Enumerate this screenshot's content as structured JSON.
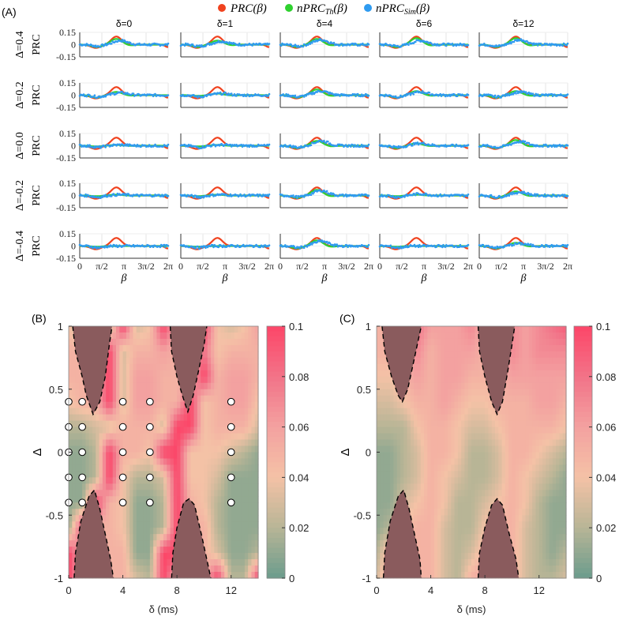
{
  "chart_data": [
    {
      "type": "line",
      "panel_label": "(A)",
      "legend": [
        {
          "label": "PRC(β)",
          "color": "#f0421e"
        },
        {
          "label": "nPRC_Th(β)",
          "color": "#2fd12f",
          "base": "nPRC",
          "sub": "Th",
          "tail": "(β)"
        },
        {
          "label": "nPRC_Sim(β)",
          "color": "#2f9bf0",
          "base": "nPRC",
          "sub": "Sim",
          "tail": "(β)"
        }
      ],
      "legend_placement": "top-center",
      "column_titles": [
        "δ=0",
        "δ=1",
        "δ=4",
        "δ=6",
        "δ=12"
      ],
      "row_titles": [
        "Δ=0.4",
        "Δ=0.2",
        "Δ=0.0",
        "Δ=-0.2",
        "Δ=-0.4"
      ],
      "ylabel": "PRC",
      "xlabel": "β",
      "xlim": [
        0,
        6.2832
      ],
      "ylim": [
        -0.15,
        0.15
      ],
      "xticks": [
        "0",
        "π/2",
        "π",
        "3π/2",
        "2π"
      ],
      "yticks": [
        "0.15",
        "0",
        "-0.15"
      ],
      "prc_peak": 0.1,
      "nprc_th_peak": [
        [
          0.07,
          0.05,
          0.07,
          0.08,
          0.08
        ],
        [
          0.04,
          0.02,
          0.07,
          0.05,
          0.05
        ],
        [
          0.01,
          0.01,
          0.06,
          0.03,
          0.07
        ],
        [
          0.01,
          0.01,
          0.07,
          0.01,
          0.05
        ],
        [
          0.0,
          0.0,
          0.07,
          0.0,
          0.04
        ]
      ],
      "nprc_sim_peak": [
        [
          0.05,
          0.04,
          0.06,
          0.05,
          0.06
        ],
        [
          0.03,
          0.02,
          0.05,
          0.04,
          0.04
        ],
        [
          0.01,
          0.01,
          0.06,
          0.03,
          0.05
        ],
        [
          0.01,
          0.01,
          0.06,
          0.02,
          0.04
        ],
        [
          0.0,
          0.0,
          0.06,
          0.0,
          0.03
        ]
      ]
    },
    {
      "type": "heatmap",
      "panel_label": "(B)",
      "xlabel": "δ (ms)",
      "ylabel": "Δ",
      "xlim": [
        0,
        14
      ],
      "ylim": [
        -1,
        1
      ],
      "xticks": [
        "0",
        "4",
        "8",
        "12"
      ],
      "xtick_values": [
        0,
        4,
        8,
        12
      ],
      "yticks": [
        "1",
        "0.5",
        "0",
        "-0.5",
        "-1"
      ],
      "ytick_values": [
        1,
        0.5,
        0,
        -0.5,
        -1
      ],
      "colorbar": {
        "ticks": [
          "0.1",
          "0.08",
          "0.06",
          "0.04",
          "0.02",
          "0"
        ],
        "tick_values": [
          0.1,
          0.08,
          0.06,
          0.04,
          0.02,
          0
        ],
        "range": [
          0,
          0.1
        ]
      },
      "grid_x": [
        0,
        1,
        2,
        3,
        4,
        5,
        6,
        7,
        8,
        9,
        10,
        11,
        12,
        13,
        14
      ],
      "grid_y": [
        1,
        0.8,
        0.6,
        0.4,
        0.2,
        0,
        -0.2,
        -0.4,
        -0.6,
        -0.8,
        -1
      ],
      "values": [
        [
          0.04,
          0.02,
          0.02,
          0.02,
          0.1,
          0.03,
          0.04,
          0.1,
          0.05,
          0.05,
          0.1,
          0.04,
          0.03,
          0.04,
          0.06
        ],
        [
          0.05,
          0.05,
          0.05,
          0.1,
          0.03,
          0.05,
          0.05,
          0.06,
          0.05,
          0.05,
          0.08,
          0.04,
          0.05,
          0.05,
          0.05
        ],
        [
          0.05,
          0.05,
          0.05,
          0.1,
          0.03,
          0.06,
          0.06,
          0.05,
          0.05,
          0.05,
          0.1,
          0.05,
          0.06,
          0.06,
          0.05
        ],
        [
          0.04,
          0.05,
          0.05,
          0.1,
          0.03,
          0.06,
          0.06,
          0.05,
          0.05,
          0.1,
          0.04,
          0.05,
          0.06,
          0.06,
          0.04
        ],
        [
          0.02,
          0.02,
          0.03,
          0.03,
          0.05,
          0.05,
          0.05,
          0.03,
          0.1,
          0.1,
          0.04,
          0.05,
          0.05,
          0.05,
          0.03
        ],
        [
          0.01,
          0.01,
          0.02,
          0.1,
          0.05,
          0.05,
          0.04,
          0.1,
          0.1,
          0.04,
          0.04,
          0.04,
          0.03,
          0.02,
          0.01
        ],
        [
          0.01,
          0.01,
          0.02,
          0.1,
          0.04,
          0.02,
          0.02,
          0.03,
          0.1,
          0.04,
          0.04,
          0.03,
          0.01,
          0.01,
          0.01
        ],
        [
          0.01,
          0.01,
          0.1,
          0.05,
          0.04,
          0.01,
          0.01,
          0.02,
          0.1,
          0.05,
          0.04,
          0.02,
          0.01,
          0.01,
          0.01
        ],
        [
          0.01,
          0.1,
          0.05,
          0.05,
          0.04,
          0.01,
          0.01,
          0.02,
          0.1,
          0.05,
          0.05,
          0.02,
          0.01,
          0.01,
          0.01
        ],
        [
          0.1,
          0.05,
          0.05,
          0.05,
          0.05,
          0.01,
          0.01,
          0.1,
          0.1,
          0.05,
          0.05,
          0.03,
          0.01,
          0.01,
          0.02
        ],
        [
          0.1,
          0.05,
          0.05,
          0.05,
          0.05,
          0.03,
          0.02,
          0.1,
          0.05,
          0.05,
          0.05,
          0.1,
          0.02,
          0.02,
          0.1
        ]
      ],
      "unstable_regions": [
        [
          [
            0.3,
            1
          ],
          [
            0.5,
            0.8
          ],
          [
            1.0,
            0.6
          ],
          [
            1.3,
            0.45
          ],
          [
            1.8,
            0.3
          ],
          [
            2.3,
            0.4
          ],
          [
            2.7,
            0.6
          ],
          [
            3.0,
            0.85
          ],
          [
            3.2,
            1
          ]
        ],
        [
          [
            7.5,
            1
          ],
          [
            7.6,
            0.8
          ],
          [
            8.0,
            0.6
          ],
          [
            8.4,
            0.45
          ],
          [
            8.8,
            0.32
          ],
          [
            9.2,
            0.45
          ],
          [
            9.6,
            0.65
          ],
          [
            10.0,
            0.85
          ],
          [
            10.2,
            1
          ]
        ],
        [
          [
            0.4,
            -1
          ],
          [
            0.5,
            -0.8
          ],
          [
            0.9,
            -0.55
          ],
          [
            1.5,
            -0.35
          ],
          [
            1.9,
            -0.3
          ],
          [
            2.3,
            -0.45
          ],
          [
            2.8,
            -0.7
          ],
          [
            3.1,
            -0.85
          ],
          [
            3.3,
            -1
          ]
        ],
        [
          [
            7.6,
            -1
          ],
          [
            7.7,
            -0.8
          ],
          [
            8.0,
            -0.6
          ],
          [
            8.5,
            -0.4
          ],
          [
            8.9,
            -0.37
          ],
          [
            9.3,
            -0.42
          ],
          [
            9.8,
            -0.65
          ],
          [
            10.2,
            -0.85
          ],
          [
            10.5,
            -1
          ]
        ]
      ],
      "markers_delta": [
        0,
        1,
        4,
        6,
        12
      ],
      "markers_Delta": [
        0.4,
        0.2,
        0,
        -0.2,
        -0.4
      ]
    },
    {
      "type": "heatmap",
      "panel_label": "(C)",
      "xlabel": "δ (ms)",
      "ylabel": "Δ",
      "xlim": [
        0,
        14
      ],
      "ylim": [
        -1,
        1
      ],
      "xticks": [
        "0",
        "4",
        "8",
        "12"
      ],
      "xtick_values": [
        0,
        4,
        8,
        12
      ],
      "yticks": [
        "1",
        "0.5",
        "0",
        "-0.5",
        "-1"
      ],
      "ytick_values": [
        1,
        0.5,
        0,
        -0.5,
        -1
      ],
      "colorbar": {
        "ticks": [
          "0.1",
          "0.08",
          "0.06",
          "0.04",
          "0.02",
          "0"
        ],
        "tick_values": [
          0.1,
          0.08,
          0.06,
          0.04,
          0.02,
          0
        ],
        "range": [
          0,
          0.1
        ]
      },
      "grid_x": [
        0,
        1,
        2,
        3,
        4,
        5,
        6,
        7,
        8,
        9,
        10,
        11,
        12,
        13,
        14
      ],
      "grid_y": [
        1,
        0.8,
        0.6,
        0.4,
        0.2,
        0,
        -0.2,
        -0.4,
        -0.6,
        -0.8,
        -1
      ],
      "values": [
        [
          0.05,
          0.05,
          0.05,
          0.08,
          0.06,
          0.06,
          0.06,
          0.07,
          0.05,
          0.05,
          0.07,
          0.06,
          0.07,
          0.08,
          0.09
        ],
        [
          0.05,
          0.05,
          0.05,
          0.07,
          0.05,
          0.06,
          0.06,
          0.06,
          0.05,
          0.05,
          0.07,
          0.06,
          0.07,
          0.07,
          0.07
        ],
        [
          0.04,
          0.04,
          0.05,
          0.06,
          0.05,
          0.06,
          0.06,
          0.05,
          0.05,
          0.05,
          0.06,
          0.06,
          0.06,
          0.06,
          0.06
        ],
        [
          0.03,
          0.03,
          0.04,
          0.05,
          0.05,
          0.06,
          0.05,
          0.04,
          0.04,
          0.05,
          0.05,
          0.05,
          0.06,
          0.06,
          0.05
        ],
        [
          0.02,
          0.02,
          0.02,
          0.04,
          0.05,
          0.05,
          0.04,
          0.03,
          0.03,
          0.04,
          0.05,
          0.05,
          0.05,
          0.05,
          0.04
        ],
        [
          0.01,
          0.01,
          0.02,
          0.03,
          0.05,
          0.05,
          0.04,
          0.02,
          0.02,
          0.03,
          0.05,
          0.05,
          0.04,
          0.03,
          0.02
        ],
        [
          0.01,
          0.01,
          0.02,
          0.03,
          0.05,
          0.04,
          0.03,
          0.02,
          0.02,
          0.03,
          0.05,
          0.04,
          0.03,
          0.02,
          0.01
        ],
        [
          0.01,
          0.01,
          0.03,
          0.04,
          0.05,
          0.04,
          0.02,
          0.02,
          0.03,
          0.04,
          0.05,
          0.04,
          0.02,
          0.01,
          0.01
        ],
        [
          0.01,
          0.02,
          0.04,
          0.05,
          0.05,
          0.03,
          0.02,
          0.02,
          0.04,
          0.05,
          0.05,
          0.03,
          0.02,
          0.01,
          0.01
        ],
        [
          0.02,
          0.05,
          0.05,
          0.05,
          0.05,
          0.03,
          0.02,
          0.03,
          0.05,
          0.05,
          0.05,
          0.03,
          0.02,
          0.01,
          0.02
        ],
        [
          0.03,
          0.06,
          0.05,
          0.05,
          0.05,
          0.03,
          0.02,
          0.05,
          0.06,
          0.05,
          0.05,
          0.03,
          0.02,
          0.02,
          0.03
        ]
      ],
      "unstable_regions": [
        [
          [
            0.4,
            1
          ],
          [
            0.6,
            0.8
          ],
          [
            1.1,
            0.6
          ],
          [
            1.6,
            0.45
          ],
          [
            1.9,
            0.4
          ],
          [
            2.3,
            0.5
          ],
          [
            2.7,
            0.7
          ],
          [
            3.1,
            0.9
          ],
          [
            3.3,
            1
          ]
        ],
        [
          [
            7.5,
            1
          ],
          [
            7.6,
            0.8
          ],
          [
            8.0,
            0.6
          ],
          [
            8.5,
            0.4
          ],
          [
            8.9,
            0.3
          ],
          [
            9.3,
            0.4
          ],
          [
            9.7,
            0.65
          ],
          [
            10.0,
            0.85
          ],
          [
            10.2,
            1
          ]
        ],
        [
          [
            0.5,
            -1
          ],
          [
            0.6,
            -0.8
          ],
          [
            1.0,
            -0.55
          ],
          [
            1.6,
            -0.35
          ],
          [
            2.0,
            -0.3
          ],
          [
            2.4,
            -0.45
          ],
          [
            2.9,
            -0.7
          ],
          [
            3.2,
            -0.85
          ],
          [
            3.3,
            -1
          ]
        ],
        [
          [
            7.5,
            -1
          ],
          [
            7.6,
            -0.8
          ],
          [
            8.0,
            -0.6
          ],
          [
            8.5,
            -0.42
          ],
          [
            8.9,
            -0.37
          ],
          [
            9.3,
            -0.42
          ],
          [
            9.8,
            -0.65
          ],
          [
            10.3,
            -0.85
          ],
          [
            10.5,
            -1
          ]
        ]
      ],
      "markers_delta": [],
      "markers_Delta": []
    }
  ],
  "colors": {
    "unstable": "#8a5b5d",
    "map_stops": [
      "#6b9c8c",
      "#b8b596",
      "#f4c2a6",
      "#f3a1a0",
      "#f27388",
      "#fc4668"
    ]
  }
}
